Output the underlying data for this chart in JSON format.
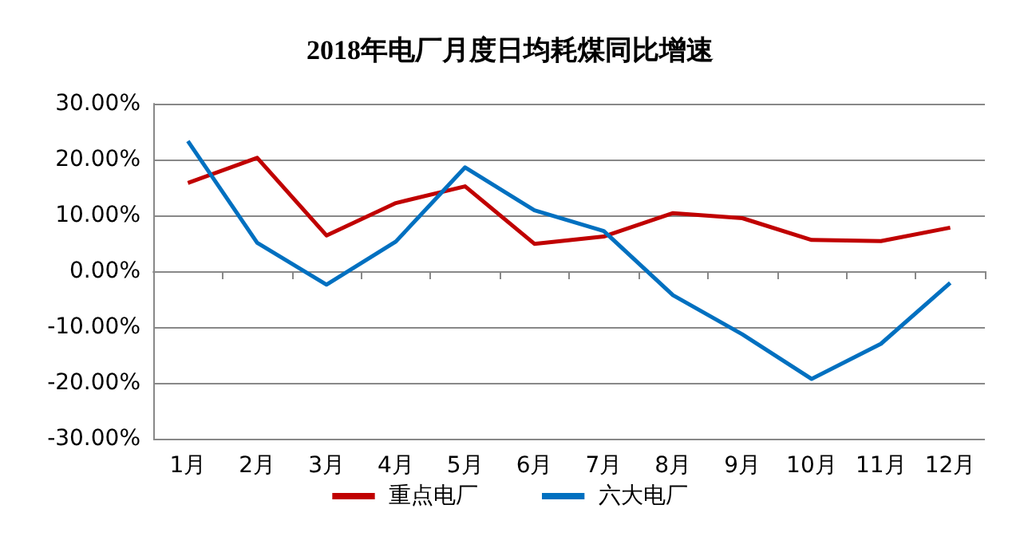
{
  "chart_data": {
    "type": "line",
    "title": "2018年电厂月度日均耗煤同比增速",
    "categories": [
      "1月",
      "2月",
      "3月",
      "4月",
      "5月",
      "6月",
      "7月",
      "8月",
      "9月",
      "10月",
      "11月",
      "12月"
    ],
    "series": [
      {
        "name": "重点电厂",
        "color": "#c00000",
        "values": [
          15.8,
          20.3,
          6.4,
          12.2,
          15.2,
          4.9,
          6.2,
          10.4,
          9.5,
          5.6,
          5.4,
          7.8
        ]
      },
      {
        "name": "六大电厂",
        "color": "#0070c0",
        "values": [
          23.3,
          5.1,
          -2.4,
          5.3,
          18.6,
          10.9,
          7.2,
          -4.3,
          -11.3,
          -19.3,
          -13.0,
          -2.1
        ]
      }
    ],
    "ylim": [
      -30,
      30
    ],
    "yticks": [
      {
        "value": -30,
        "label": "-30.00%"
      },
      {
        "value": -20,
        "label": "-20.00%"
      },
      {
        "value": -10,
        "label": "-10.00%"
      },
      {
        "value": 0,
        "label": "0.00%"
      },
      {
        "value": 10,
        "label": "10.00%"
      },
      {
        "value": 20,
        "label": "20.00%"
      },
      {
        "value": 30,
        "label": "30.00%"
      }
    ],
    "grid": "y",
    "legend": "bottom",
    "marker": "none",
    "line_style": "solid"
  }
}
